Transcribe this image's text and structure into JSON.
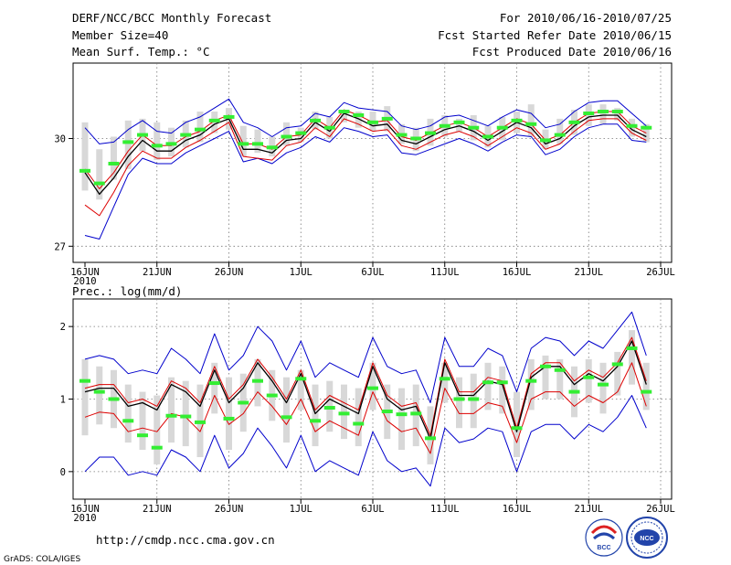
{
  "header": {
    "title": "DERF/NCC/BCC Monthly Forecast",
    "member_size": "Member Size=40",
    "variable": "Mean Surf. Temp.: °C",
    "period": "For 2010/06/16-2010/07/25",
    "refer_date": "Fcst Started Refer Date 2010/06/15",
    "produced_date": "Fcst Produced Date 2010/06/16"
  },
  "footer": {
    "url": "http://cmdp.ncc.cma.gov.cn",
    "grads": "GrADS: COLA/IGES",
    "bcc_logo": "BCC",
    "ncc_logo": "NCC"
  },
  "colors": {
    "ensemble_mean": "#000000",
    "member_envelope": "#0000cc",
    "spread_line": "#dd0000",
    "box": "#d8d8d8",
    "median_marker": "#33ee33"
  },
  "chart_data": [
    {
      "type": "line",
      "title": "Mean Surf. Temp.: °C",
      "x_tick_labels": [
        "16JUN",
        "21JUN",
        "26JUN",
        "1JUL",
        "6JUL",
        "11JUL",
        "16JUL",
        "21JUL",
        "26JUL"
      ],
      "year_label": "2010",
      "y_ticks": [
        27,
        30
      ],
      "ylim": [
        26.55,
        32.1
      ],
      "xlim": [
        0,
        40
      ],
      "series": [
        {
          "name": "mean",
          "values": [
            29.05,
            28.45,
            28.9,
            29.5,
            29.95,
            29.65,
            29.65,
            29.95,
            30.1,
            30.4,
            30.55,
            29.7,
            29.7,
            29.6,
            29.95,
            30.0,
            30.45,
            30.2,
            30.7,
            30.55,
            30.35,
            30.4,
            29.95,
            29.85,
            30.05,
            30.25,
            30.35,
            30.2,
            29.95,
            30.2,
            30.45,
            30.3,
            29.85,
            30.0,
            30.35,
            30.6,
            30.65,
            30.65,
            30.25,
            30.05
          ]
        },
        {
          "name": "upper_spread",
          "values": [
            29.15,
            28.6,
            29.05,
            29.65,
            30.1,
            29.8,
            29.8,
            30.05,
            30.2,
            30.5,
            30.65,
            29.85,
            29.85,
            29.7,
            30.05,
            30.1,
            30.55,
            30.3,
            30.8,
            30.65,
            30.45,
            30.5,
            30.05,
            29.95,
            30.15,
            30.35,
            30.45,
            30.3,
            30.05,
            30.3,
            30.55,
            30.4,
            29.95,
            30.1,
            30.45,
            30.7,
            30.75,
            30.75,
            30.35,
            30.15
          ]
        },
        {
          "name": "lower_spread",
          "values": [
            28.15,
            27.85,
            28.5,
            29.25,
            29.65,
            29.45,
            29.45,
            29.75,
            29.95,
            30.2,
            30.45,
            29.5,
            29.45,
            29.4,
            29.8,
            29.9,
            30.3,
            30.05,
            30.55,
            30.4,
            30.2,
            30.25,
            29.8,
            29.7,
            29.9,
            30.1,
            30.2,
            30.05,
            29.8,
            30.05,
            30.3,
            30.15,
            29.7,
            29.85,
            30.2,
            30.5,
            30.55,
            30.55,
            30.15,
            29.95
          ]
        },
        {
          "name": "max_member",
          "values": [
            30.3,
            29.85,
            29.9,
            30.25,
            30.5,
            30.2,
            30.15,
            30.45,
            30.6,
            30.85,
            31.1,
            30.45,
            30.3,
            30.05,
            30.3,
            30.35,
            30.7,
            30.6,
            31.0,
            30.85,
            30.8,
            30.75,
            30.35,
            30.25,
            30.35,
            30.6,
            30.65,
            30.5,
            30.35,
            30.6,
            30.8,
            30.7,
            30.3,
            30.4,
            30.75,
            31.0,
            31.05,
            31.05,
            30.7,
            30.35
          ]
        },
        {
          "name": "min_member",
          "values": [
            27.3,
            27.2,
            28.1,
            29.0,
            29.45,
            29.3,
            29.3,
            29.6,
            29.8,
            30.0,
            30.2,
            29.35,
            29.45,
            29.3,
            29.6,
            29.75,
            30.05,
            29.9,
            30.3,
            30.2,
            30.05,
            30.1,
            29.6,
            29.55,
            29.7,
            29.85,
            30.0,
            29.85,
            29.65,
            29.9,
            30.1,
            30.05,
            29.55,
            29.7,
            30.05,
            30.3,
            30.4,
            30.4,
            29.95,
            29.9
          ]
        },
        {
          "name": "median",
          "values": [
            29.1,
            28.75,
            29.3,
            29.9,
            30.1,
            29.8,
            29.85,
            30.1,
            30.25,
            30.5,
            30.6,
            29.85,
            29.85,
            29.75,
            30.05,
            30.15,
            30.5,
            30.3,
            30.75,
            30.65,
            30.45,
            30.55,
            30.1,
            30.0,
            30.15,
            30.35,
            30.45,
            30.3,
            30.05,
            30.3,
            30.5,
            30.4,
            29.95,
            30.1,
            30.45,
            30.7,
            30.75,
            30.75,
            30.35,
            30.3
          ]
        },
        {
          "name": "box_high",
          "values": [
            30.45,
            29.7,
            30.05,
            30.5,
            30.55,
            30.45,
            30.3,
            30.5,
            30.75,
            30.75,
            30.85,
            30.35,
            30.25,
            30.05,
            30.45,
            30.3,
            30.75,
            30.6,
            30.8,
            30.75,
            30.75,
            30.9,
            30.4,
            30.3,
            30.55,
            30.65,
            30.55,
            30.65,
            30.35,
            30.6,
            30.75,
            30.95,
            30.25,
            30.55,
            30.8,
            30.95,
            30.95,
            30.85,
            30.55,
            30.4
          ]
        },
        {
          "name": "box_low",
          "values": [
            28.55,
            28.3,
            28.85,
            29.15,
            29.65,
            29.4,
            29.5,
            29.75,
            29.9,
            30.15,
            30.25,
            29.5,
            29.6,
            29.5,
            29.8,
            29.9,
            30.25,
            30.0,
            30.45,
            30.3,
            30.2,
            30.2,
            29.85,
            29.65,
            29.8,
            30.05,
            30.2,
            29.95,
            29.75,
            29.95,
            30.15,
            30.05,
            29.7,
            29.85,
            30.1,
            30.35,
            30.4,
            30.5,
            30.05,
            29.9
          ]
        }
      ]
    },
    {
      "type": "line",
      "title": "Prec.: log(mm/d)",
      "x_tick_labels": [
        "16JUN",
        "21JUN",
        "26JUN",
        "1JUL",
        "6JUL",
        "11JUL",
        "16JUL",
        "21JUL",
        "26JUL"
      ],
      "year_label": "2010",
      "y_ticks": [
        0,
        1,
        2
      ],
      "ylim": [
        -0.38,
        2.38
      ],
      "xlim": [
        0,
        40
      ],
      "series": [
        {
          "name": "mean",
          "values": [
            1.1,
            1.15,
            1.15,
            0.9,
            0.95,
            0.85,
            1.2,
            1.1,
            0.9,
            1.4,
            0.95,
            1.15,
            1.5,
            1.25,
            0.95,
            1.35,
            0.8,
            1.0,
            0.9,
            0.8,
            1.45,
            1.0,
            0.85,
            0.9,
            0.45,
            1.5,
            1.05,
            1.05,
            1.25,
            1.2,
            0.55,
            1.3,
            1.45,
            1.45,
            1.2,
            1.35,
            1.25,
            1.45,
            1.8,
            1.2
          ]
        },
        {
          "name": "upper_spread",
          "values": [
            1.15,
            1.2,
            1.2,
            0.95,
            1.0,
            0.9,
            1.25,
            1.15,
            0.95,
            1.45,
            1.0,
            1.2,
            1.55,
            1.3,
            1.0,
            1.4,
            0.85,
            1.05,
            0.95,
            0.85,
            1.5,
            1.05,
            0.9,
            0.95,
            0.5,
            1.55,
            1.1,
            1.1,
            1.3,
            1.25,
            0.6,
            1.35,
            1.5,
            1.5,
            1.25,
            1.4,
            1.3,
            1.5,
            1.85,
            1.25
          ]
        },
        {
          "name": "lower_spread",
          "values": [
            0.75,
            0.82,
            0.8,
            0.55,
            0.6,
            0.55,
            0.8,
            0.75,
            0.55,
            1.05,
            0.65,
            0.8,
            1.1,
            0.9,
            0.65,
            1.0,
            0.55,
            0.7,
            0.6,
            0.5,
            1.1,
            0.7,
            0.55,
            0.6,
            0.25,
            1.15,
            0.8,
            0.8,
            0.95,
            0.9,
            0.4,
            1.0,
            1.1,
            1.1,
            0.9,
            1.05,
            0.95,
            1.1,
            1.5,
            0.9
          ]
        },
        {
          "name": "max_member",
          "values": [
            1.55,
            1.6,
            1.55,
            1.35,
            1.4,
            1.35,
            1.7,
            1.55,
            1.35,
            1.9,
            1.4,
            1.6,
            2.0,
            1.8,
            1.4,
            1.8,
            1.3,
            1.5,
            1.4,
            1.3,
            1.85,
            1.45,
            1.35,
            1.4,
            0.95,
            1.85,
            1.45,
            1.45,
            1.7,
            1.6,
            1.1,
            1.7,
            1.85,
            1.8,
            1.6,
            1.8,
            1.7,
            1.95,
            2.2,
            1.6
          ]
        },
        {
          "name": "min_member",
          "values": [
            0.0,
            0.2,
            0.2,
            -0.05,
            0.0,
            -0.05,
            0.3,
            0.2,
            0.0,
            0.5,
            0.05,
            0.25,
            0.6,
            0.35,
            0.05,
            0.5,
            0.0,
            0.15,
            0.05,
            -0.05,
            0.55,
            0.15,
            0.0,
            0.05,
            -0.2,
            0.6,
            0.4,
            0.45,
            0.6,
            0.55,
            0.0,
            0.55,
            0.65,
            0.65,
            0.45,
            0.65,
            0.55,
            0.75,
            1.05,
            0.6
          ]
        },
        {
          "name": "median",
          "values": [
            1.25,
            1.1,
            1.0,
            0.7,
            0.5,
            0.33,
            0.77,
            0.76,
            0.68,
            1.22,
            0.73,
            0.95,
            1.25,
            1.05,
            0.75,
            1.28,
            0.7,
            0.88,
            0.8,
            0.66,
            1.15,
            0.83,
            0.79,
            0.8,
            0.46,
            1.28,
            1.0,
            1.0,
            1.23,
            1.23,
            0.6,
            1.25,
            1.45,
            1.4,
            1.1,
            1.3,
            1.2,
            1.48,
            1.7,
            1.1
          ]
        },
        {
          "name": "box_high",
          "values": [
            1.55,
            1.45,
            1.4,
            1.2,
            1.1,
            1.05,
            1.3,
            1.25,
            1.2,
            1.5,
            1.3,
            1.35,
            1.55,
            1.4,
            1.3,
            1.4,
            1.2,
            1.25,
            1.2,
            1.15,
            1.5,
            1.2,
            1.15,
            1.2,
            0.9,
            1.5,
            1.3,
            1.35,
            1.5,
            1.45,
            1.1,
            1.55,
            1.6,
            1.55,
            1.45,
            1.55,
            1.5,
            1.65,
            1.95,
            1.5
          ]
        },
        {
          "name": "box_low",
          "values": [
            0.5,
            0.65,
            0.6,
            0.4,
            0.3,
            0.1,
            0.4,
            0.35,
            0.2,
            0.8,
            0.3,
            0.55,
            0.9,
            0.7,
            0.4,
            0.85,
            0.35,
            0.55,
            0.45,
            0.35,
            0.85,
            0.45,
            0.3,
            0.35,
            0.1,
            0.95,
            0.6,
            0.6,
            0.85,
            0.8,
            0.2,
            0.85,
            1.0,
            1.0,
            0.75,
            0.95,
            0.8,
            1.05,
            1.2,
            0.85
          ]
        }
      ]
    }
  ]
}
